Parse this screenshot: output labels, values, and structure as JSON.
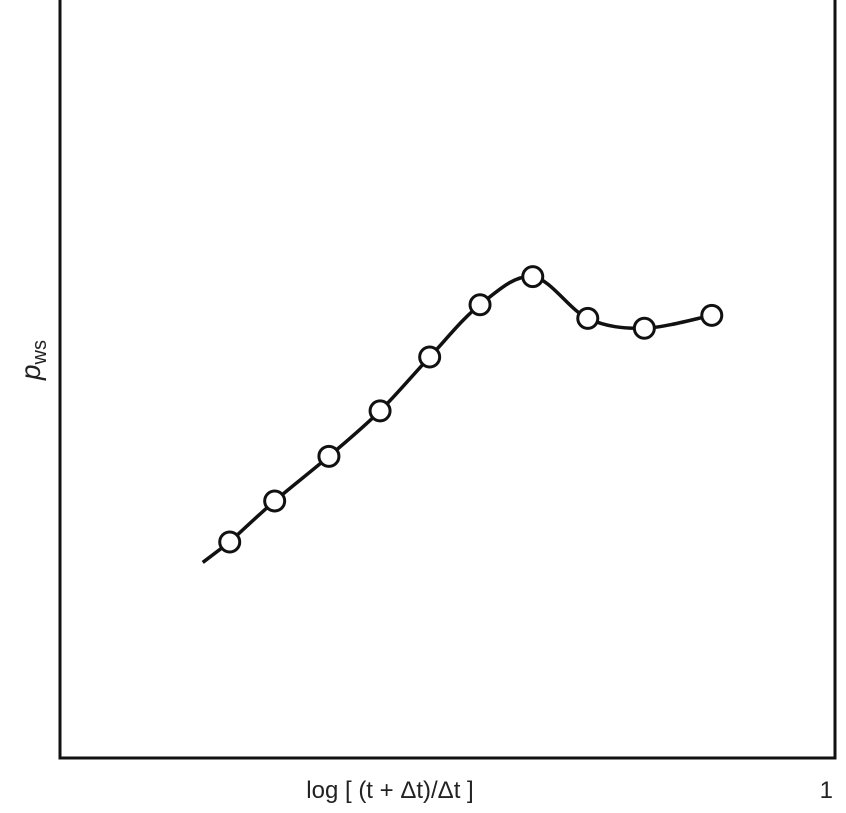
{
  "chart_data": {
    "type": "line",
    "x_label": "log [ (t + Δt)/Δt ]",
    "y_label": "p",
    "y_label_sub": "ws",
    "x": [
      0.219,
      0.277,
      0.347,
      0.413,
      0.477,
      0.542,
      0.61,
      0.681,
      0.754,
      0.841
    ],
    "values": [
      0.285,
      0.339,
      0.398,
      0.458,
      0.529,
      0.598,
      0.635,
      0.58,
      0.567,
      0.584
    ],
    "color": "#111111",
    "xlim": [
      0,
      1
    ],
    "xticks": [
      1
    ],
    "ylim": [
      0,
      1
    ]
  }
}
